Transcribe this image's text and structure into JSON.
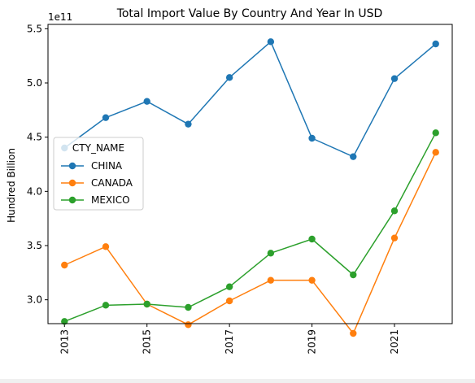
{
  "chart_data": {
    "type": "line",
    "title": "Total Import Value By Country And Year In USD",
    "ylabel": "Hundred Billion",
    "xlabel": "",
    "offset_label": "1e11",
    "x": [
      2013,
      2014,
      2015,
      2016,
      2017,
      2018,
      2019,
      2020,
      2021,
      2022
    ],
    "x_ticks": [
      "2013",
      "2015",
      "2017",
      "2019",
      "2021"
    ],
    "y_ticks": [
      "3.0",
      "3.5",
      "4.0",
      "4.5",
      "5.0",
      "5.5"
    ],
    "ylim": [
      2.78,
      5.54
    ],
    "xlim": [
      2012.6,
      2022.4
    ],
    "grid": false,
    "legend": {
      "title": "CTY_NAME",
      "placement": "center-left"
    },
    "series": [
      {
        "name": "CHINA",
        "color": "#1f77b4",
        "values": [
          4.4,
          4.68,
          4.83,
          4.62,
          5.05,
          5.38,
          4.49,
          4.32,
          5.04,
          5.36
        ]
      },
      {
        "name": "CANADA",
        "color": "#ff7f0e",
        "values": [
          3.32,
          3.49,
          2.96,
          2.77,
          2.99,
          3.18,
          3.18,
          2.69,
          3.57,
          4.36
        ]
      },
      {
        "name": "MEXICO",
        "color": "#2ca02c",
        "values": [
          2.8,
          2.95,
          2.96,
          2.93,
          3.12,
          3.43,
          3.56,
          3.23,
          3.82,
          4.54
        ]
      }
    ]
  }
}
